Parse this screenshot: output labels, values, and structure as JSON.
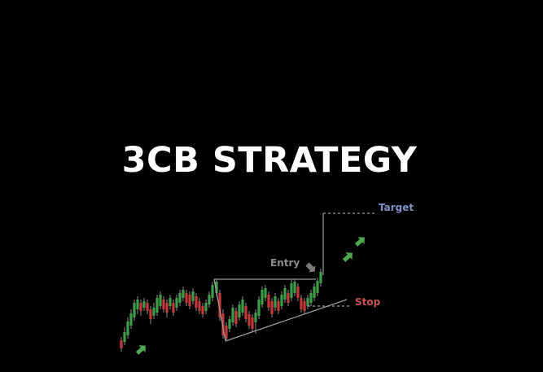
{
  "title": "3CB STRATEGY",
  "labels": {
    "target": "Target",
    "entry": "Entry",
    "stop": "Stop"
  },
  "colors": {
    "background": "#000000",
    "title": "#ffffff",
    "bull_candle": "#3f9e4a",
    "bear_candle": "#c43a3a",
    "wick": "#8a8a8a",
    "pattern_line": "#9a9a9a",
    "target_label": "#7f93c9",
    "entry_label": "#8c8c8c",
    "stop_label": "#c65656",
    "arrow_green": "#4ea851",
    "arrow_gray": "#7a7a7a"
  },
  "icons": {
    "up_arrow": "arrow-up-right-icon",
    "entry_arrow": "arrow-down-right-icon"
  }
}
